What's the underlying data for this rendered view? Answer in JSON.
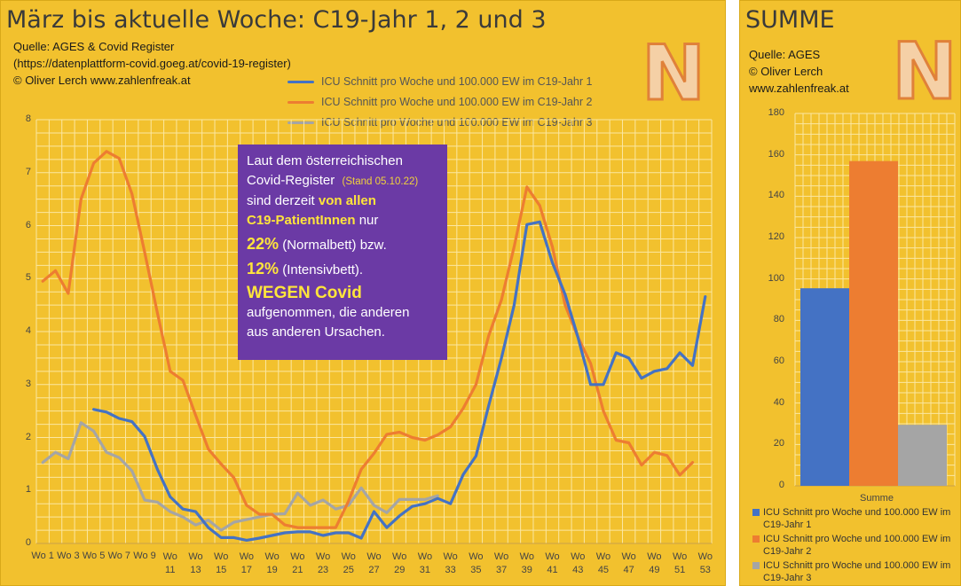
{
  "left_panel": {
    "title": "März bis aktuelle Woche: C19-Jahr 1, 2 und 3",
    "source_lines": [
      "Quelle: AGES & Covid Register",
      "(https://datenplattform-covid.goeg.at/covid-19-register)",
      "© Oliver Lerch www.zahlenfreak.at"
    ],
    "logo_letter": "N",
    "infobox": {
      "l1": "Laut dem österreichischen",
      "l2a": "Covid-Register",
      "l2b": "(Stand 05.10.22)",
      "l3a": "sind derzeit ",
      "l3b": "von allen",
      "l4a": "C19-PatientInnen",
      "l4b": " nur",
      "l5a": "22%",
      "l5b": " (Normalbett) bzw.",
      "l6a": "12%",
      "l6b": " (Intensivbett).",
      "l7": "WEGEN Covid",
      "l8": "aufgenommen, die anderen",
      "l9": "aus anderen Ursachen."
    }
  },
  "right_panel": {
    "title": "SUMME",
    "source_lines": [
      "Quelle: AGES",
      "© Oliver Lerch",
      "www.zahlenfreak.at"
    ],
    "logo_letter": "N"
  },
  "colors": {
    "series1": "#4472c4",
    "series2": "#ed7d31",
    "series3": "#a5a5a5"
  },
  "chart_data": [
    {
      "type": "line",
      "title": "März bis aktuelle Woche: C19-Jahr 1, 2 und 3",
      "ylim": [
        0,
        8
      ],
      "yticks": [
        "0",
        "1",
        "2",
        "3",
        "4",
        "5",
        "6",
        "7",
        "8"
      ],
      "grid": true,
      "legend_position": "top-right",
      "x_weeks": [
        1,
        2,
        3,
        4,
        5,
        6,
        7,
        8,
        9,
        10,
        11,
        12,
        13,
        14,
        15,
        16,
        17,
        18,
        19,
        20,
        21,
        22,
        23,
        24,
        25,
        26,
        27,
        28,
        29,
        30,
        31,
        32,
        33,
        34,
        35,
        36,
        37,
        38,
        39,
        40,
        41,
        42,
        43,
        44,
        45,
        46,
        47,
        48,
        49,
        50,
        51,
        52,
        53
      ],
      "xtick_labels": [
        "Wo 1",
        "Wo 3",
        "Wo 5",
        "Wo 7",
        "Wo 9",
        "11",
        "13",
        "15",
        "17",
        "19",
        "21",
        "23",
        "25",
        "27",
        "29",
        "31",
        "33",
        "35",
        "37",
        "39",
        "41",
        "43",
        "45",
        "47",
        "49",
        "51",
        "53"
      ],
      "xtick_prefix": "Wo",
      "series": [
        {
          "name": "ICU Schnitt pro Woche und 100.000 EW im C19-Jahr 1",
          "values": [
            null,
            null,
            null,
            null,
            2.53,
            2.48,
            2.36,
            2.3,
            2.02,
            1.4,
            0.88,
            0.65,
            0.6,
            0.3,
            0.11,
            0.11,
            0.06,
            0.1,
            0.15,
            0.2,
            0.22,
            0.22,
            0.15,
            0.2,
            0.2,
            0.1,
            0.6,
            0.3,
            0.52,
            0.7,
            0.75,
            0.85,
            0.75,
            1.3,
            1.65,
            2.6,
            3.5,
            4.5,
            6.02,
            6.07,
            5.3,
            4.7,
            3.9,
            3.0,
            3.0,
            3.6,
            3.5,
            3.12,
            3.25,
            3.3,
            3.6,
            3.36,
            4.66
          ]
        },
        {
          "name": "ICU Schnitt pro Woche und 100.000 EW im C19-Jahr 2",
          "values": [
            4.95,
            5.15,
            4.72,
            6.5,
            7.18,
            7.4,
            7.27,
            6.6,
            5.5,
            4.35,
            3.25,
            3.08,
            2.42,
            1.78,
            1.5,
            1.24,
            0.72,
            0.55,
            0.55,
            0.35,
            0.3,
            0.3,
            0.3,
            0.3,
            0.8,
            1.4,
            1.7,
            2.06,
            2.1,
            2.0,
            1.95,
            2.05,
            2.2,
            2.55,
            3.0,
            3.92,
            4.6,
            5.6,
            6.73,
            6.38,
            5.6,
            4.5,
            3.9,
            3.4,
            2.5,
            1.95,
            1.9,
            1.48,
            1.72,
            1.66,
            1.29,
            1.53,
            null
          ]
        },
        {
          "name": "ICU Schnitt pro Woche und 100.000 EW im C19-Jahr 3",
          "values": [
            1.53,
            1.72,
            1.6,
            2.28,
            2.12,
            1.72,
            1.62,
            1.37,
            0.82,
            0.78,
            0.6,
            0.5,
            0.35,
            0.44,
            0.25,
            0.4,
            0.45,
            0.5,
            0.55,
            0.56,
            0.95,
            0.72,
            0.82,
            0.65,
            0.72,
            1.05,
            0.72,
            0.58,
            0.83,
            0.83,
            0.83,
            0.9,
            null,
            null,
            null,
            null,
            null,
            null,
            null,
            null,
            null,
            null,
            null,
            null,
            null,
            null,
            null,
            null,
            null,
            null,
            null,
            null,
            null
          ]
        }
      ]
    },
    {
      "type": "bar",
      "title": "SUMME",
      "categories": [
        "Summe"
      ],
      "ylim": [
        0,
        180
      ],
      "yticks": [
        "0",
        "20",
        "40",
        "60",
        "80",
        "100",
        "120",
        "140",
        "160",
        "180"
      ],
      "grid": true,
      "legend_position": "bottom",
      "series": [
        {
          "name": "ICU Schnitt pro Woche und 100.000 EW im C19-Jahr 1",
          "values": [
            95.5
          ]
        },
        {
          "name": "ICU Schnitt pro Woche und 100.000 EW im C19-Jahr 2",
          "values": [
            157
          ]
        },
        {
          "name": "ICU Schnitt pro Woche und 100.000 EW im C19-Jahr 3",
          "values": [
            29.5
          ]
        }
      ]
    }
  ]
}
